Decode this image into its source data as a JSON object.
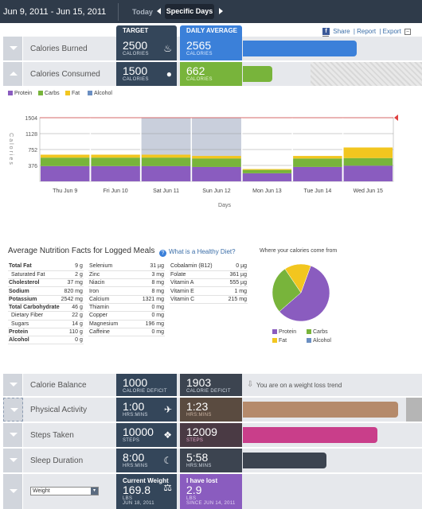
{
  "header": {
    "date_range": "Jun 9, 2011 - Jun 15, 2011",
    "today_label": "Today",
    "specific_days_label": "Specific Days",
    "target_label": "TARGET",
    "daily_average_label": "DAILY AVERAGE",
    "share_label": "Share",
    "report_label": "Report",
    "export_label": "Export"
  },
  "rows": {
    "calories_burned": {
      "label": "Calories Burned",
      "target": "2500",
      "target_unit": "CALORIES",
      "avg": "2565",
      "avg_unit": "CALORIES",
      "progress": 0.55
    },
    "calories_consumed": {
      "label": "Calories Consumed",
      "target": "1500",
      "target_unit": "CALORIES",
      "avg": "662",
      "avg_unit": "CALORIES",
      "progress": 0.16
    }
  },
  "legend": {
    "protein": "Protein",
    "carbs": "Carbs",
    "fat": "Fat",
    "alcohol": "Alcohol"
  },
  "colors": {
    "protein": "#8a5cbf",
    "carbs": "#78b43b",
    "fat": "#f2c61f",
    "alcohol": "#6b8fc2"
  },
  "chart_data": {
    "type": "bar",
    "stacked": true,
    "categories": [
      "Thu Jun 9",
      "Fri Jun 10",
      "Sat Jun 11",
      "Sun Jun 12",
      "Mon Jun 13",
      "Tue Jun 14",
      "Wed Jun 15"
    ],
    "series": [
      {
        "name": "Protein",
        "values": [
          360,
          360,
          360,
          340,
          190,
          340,
          370
        ]
      },
      {
        "name": "Carbs",
        "values": [
          200,
          200,
          200,
          200,
          80,
          200,
          180
        ]
      },
      {
        "name": "Fat",
        "values": [
          70,
          70,
          70,
          60,
          20,
          60,
          250
        ]
      },
      {
        "name": "Alcohol",
        "values": [
          0,
          0,
          0,
          0,
          0,
          0,
          0
        ]
      }
    ],
    "ylabel": "Calories",
    "xlabel": "Days",
    "yticks": [
      376,
      752,
      1128,
      1504
    ],
    "ylim": [
      0,
      1504
    ],
    "target_line": 1504
  },
  "nutrition": {
    "title": "Average Nutrition Facts for Logged Meals",
    "healthy_link": "What is a Healthy Diet?",
    "col1": [
      {
        "name": "Total Fat",
        "val": "9",
        "unit": "g",
        "bold": true
      },
      {
        "name": "Saturated Fat",
        "val": "2",
        "unit": "g",
        "indent": true
      },
      {
        "name": "Cholesterol",
        "val": "37",
        "unit": "mg",
        "bold": true
      },
      {
        "name": "Sodium",
        "val": "820",
        "unit": "mg",
        "bold": true
      },
      {
        "name": "Potassium",
        "val": "2542",
        "unit": "mg",
        "bold": true
      },
      {
        "name": "Total Carbohydrate",
        "val": "46",
        "unit": "g",
        "bold": true
      },
      {
        "name": "Dietary Fiber",
        "val": "22",
        "unit": "g",
        "indent": true
      },
      {
        "name": "Sugars",
        "val": "14",
        "unit": "g",
        "indent": true
      },
      {
        "name": "Protein",
        "val": "110",
        "unit": "g",
        "bold": true
      },
      {
        "name": "Alcohol",
        "val": "0",
        "unit": "g",
        "bold": true
      }
    ],
    "col2": [
      {
        "name": "Selenium",
        "val": "31",
        "unit": "µg"
      },
      {
        "name": "Zinc",
        "val": "3",
        "unit": "mg"
      },
      {
        "name": "Niacin",
        "val": "8",
        "unit": "mg"
      },
      {
        "name": "Iron",
        "val": "8",
        "unit": "mg"
      },
      {
        "name": "Calcium",
        "val": "1321",
        "unit": "mg"
      },
      {
        "name": "Thiamin",
        "val": "0",
        "unit": "mg"
      },
      {
        "name": "Copper",
        "val": "0",
        "unit": "mg"
      },
      {
        "name": "Magnesium",
        "val": "196",
        "unit": "mg"
      },
      {
        "name": "Caffeine",
        "val": "0",
        "unit": "mg"
      }
    ],
    "col3": [
      {
        "name": "Cobalamin (B12)",
        "val": "0",
        "unit": "µg"
      },
      {
        "name": "Folate",
        "val": "361",
        "unit": "µg"
      },
      {
        "name": "Vitamin A",
        "val": "555",
        "unit": "µg"
      },
      {
        "name": "Vitamin E",
        "val": "1",
        "unit": "mg"
      },
      {
        "name": "Vitamin C",
        "val": "215",
        "unit": "mg"
      }
    ]
  },
  "pie": {
    "title": "Where your calories come from",
    "slices": [
      {
        "name": "Protein",
        "value": 58
      },
      {
        "name": "Carbs",
        "value": 27
      },
      {
        "name": "Fat",
        "value": 15
      },
      {
        "name": "Alcohol",
        "value": 0
      }
    ]
  },
  "bottom": {
    "calorie_balance": {
      "label": "Calorie Balance",
      "left_val": "1000",
      "left_unit": "CALORIE DEFICIT",
      "right_val": "1903",
      "right_unit": "CALORIE DEFICIT",
      "trend": "You are on a weight loss trend"
    },
    "physical_activity": {
      "label": "Physical Activity",
      "left_val": "1:00",
      "left_unit": "HRS:MINS",
      "right_val": "1:23",
      "right_unit": "HRS:MINS",
      "progress": 0.86
    },
    "steps_taken": {
      "label": "Steps Taken",
      "left_val": "10000",
      "left_unit": "STEPS",
      "right_val": "12009",
      "right_unit": "STEPS",
      "progress": 0.74
    },
    "sleep_duration": {
      "label": "Sleep Duration",
      "left_val": "8:00",
      "left_unit": "HRS:MINS",
      "right_val": "5:58",
      "right_unit": "HRS:MINS",
      "progress": 0.47
    },
    "weight": {
      "select_value": "Weight",
      "current_label": "Current Weight",
      "current_val": "169.8",
      "current_unit": "LBS",
      "current_date": "JUN 18, 2011",
      "lost_label": "I have lost",
      "lost_val": "2.9",
      "lost_unit": "LBS",
      "lost_since": "SINCE JUN 14, 2011"
    }
  }
}
